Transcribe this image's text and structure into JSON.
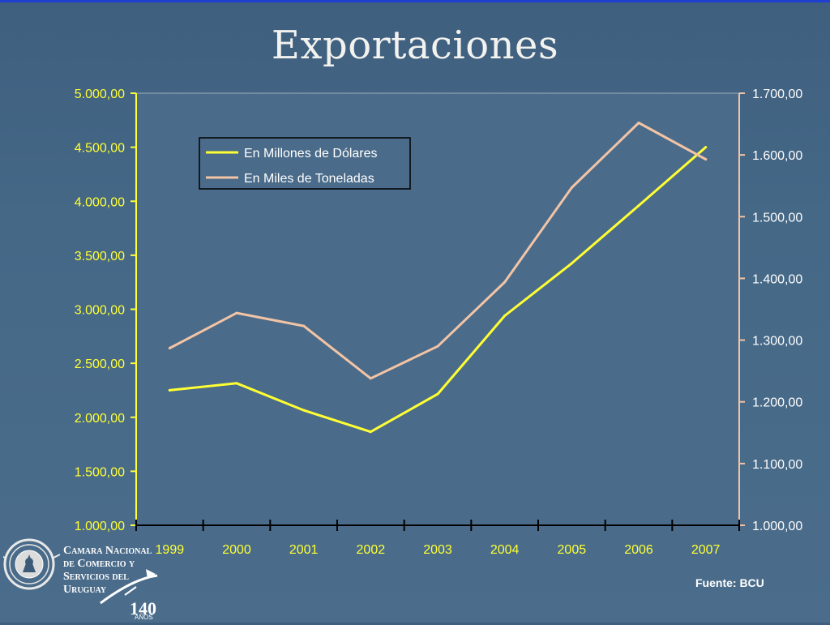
{
  "slide": {
    "title": "Exportaciones",
    "source": "Fuente: BCU"
  },
  "logo": {
    "icon": "chamber-of-commerce-seal",
    "name_lines": [
      "Camara Nacional",
      "de Comercio y",
      "Servicios del",
      "Uruguay"
    ],
    "anniversary_number": "140",
    "anniversary_word": "AÑOS"
  },
  "colors": {
    "dollars_line": "#ffff33",
    "tons_line": "#f2c4a6",
    "plot_bg": "#4a6b89",
    "axis_left": "#ffff33",
    "axis_right": "#f2c4a6",
    "axis_x": "#000000"
  },
  "chart_data": {
    "type": "line",
    "title": "",
    "x": [
      "1999",
      "2000",
      "2001",
      "2002",
      "2003",
      "2004",
      "2005",
      "2006",
      "2007"
    ],
    "series": [
      {
        "name": "En Millones de Dólares",
        "axis": "left",
        "values": [
          2250,
          2315,
          2065,
          1865,
          2215,
          2940,
          3425,
          3960,
          4500
        ]
      },
      {
        "name": "En Miles de Toneladas",
        "axis": "right",
        "values": [
          1287,
          1344,
          1323,
          1238,
          1290,
          1394,
          1547,
          1652,
          1593
        ]
      }
    ],
    "y_left": {
      "range": [
        1000,
        5000
      ],
      "ticks": [
        "1.000,00",
        "1.500,00",
        "2.000,00",
        "2.500,00",
        "3.000,00",
        "3.500,00",
        "4.000,00",
        "4.500,00",
        "5.000,00"
      ]
    },
    "y_right": {
      "range": [
        1000,
        1700
      ],
      "ticks": [
        "1.000,00",
        "1.100,00",
        "1.200,00",
        "1.300,00",
        "1.400,00",
        "1.500,00",
        "1.600,00",
        "1.700,00"
      ]
    },
    "legend_position": "top-left",
    "grid": false
  }
}
